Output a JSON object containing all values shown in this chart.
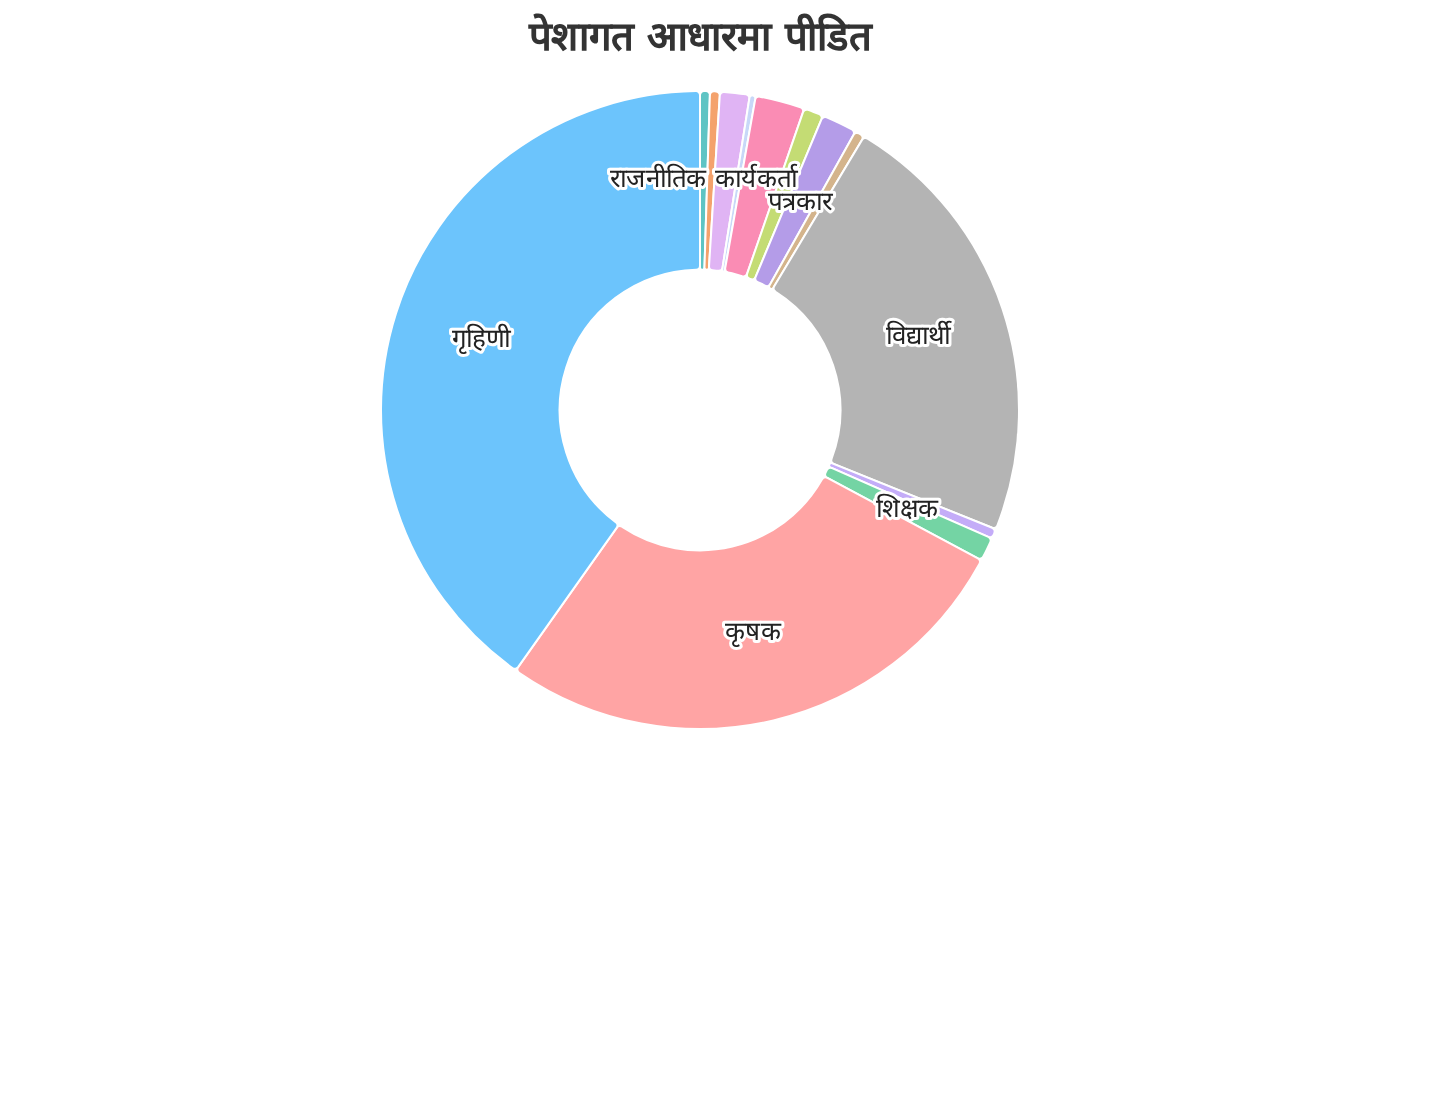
{
  "chart_data": {
    "type": "donut",
    "title": "पेशागत आधारमा पीडित",
    "categories": [
      "राजनीतिक कार्यकर्ता",
      null,
      null,
      null,
      null,
      null,
      "पत्रकार",
      null,
      "विद्यार्थी",
      null,
      "शिक्षक",
      "कृषक",
      "गृहिणी"
    ],
    "values": [
      0.5,
      0.5,
      1.5,
      0.3,
      2.5,
      1,
      1.8,
      0.5,
      22.5,
      0.5,
      1.2,
      27,
      40.2
    ],
    "colors": [
      "#5ec4c4",
      "#f4a26c",
      "#e0b4f4",
      "#c8d8f8",
      "#fa8cb4",
      "#c4dc74",
      "#b49ce8",
      "#d4b48c",
      "#b4b4b4",
      "#c4acf8",
      "#74d4a4",
      "#ffa4a4",
      "#6cc4fc"
    ],
    "legend": false
  }
}
